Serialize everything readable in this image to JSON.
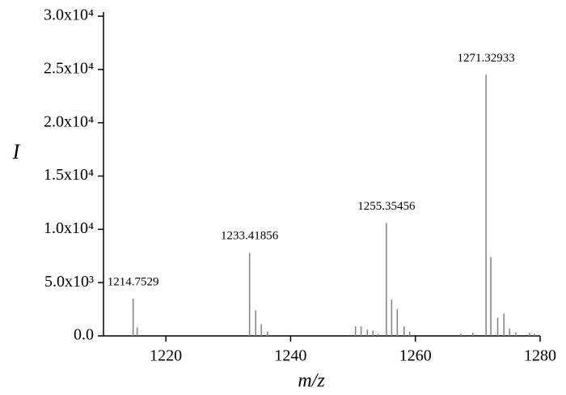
{
  "chart_data": {
    "type": "stick",
    "x_axis_label": "m/z",
    "y_axis_label": "I",
    "color": "#808080",
    "xlim": [
      1210,
      1280
    ],
    "xticks": [
      1220,
      1240,
      1260,
      1280
    ],
    "ylim": [
      0,
      30000
    ],
    "yticks": [
      {
        "value": 0,
        "label": "0.0"
      },
      {
        "value": 5000,
        "label": "5.0x10³"
      },
      {
        "value": 10000,
        "label": "1.0x10⁴"
      },
      {
        "value": 15000,
        "label": "1.5x10⁴"
      },
      {
        "value": 20000,
        "label": "2.0x10⁴"
      },
      {
        "value": 25000,
        "label": "2.5x10⁴"
      },
      {
        "value": 30000,
        "label": "3.0x10⁴"
      }
    ],
    "x": [
      1214.7529,
      1215.4,
      1233.41856,
      1234.4,
      1235.3,
      1236.3,
      1250.4,
      1251.3,
      1252.3,
      1253.2,
      1254.0,
      1255.35456,
      1256.2,
      1257.1,
      1258.2,
      1259.1,
      1267.3,
      1269.2,
      1271.32933,
      1272.1,
      1273.2,
      1274.2,
      1275.1,
      1276.1,
      1278.3,
      1279.1
    ],
    "values": [
      3500,
      800,
      7800,
      2400,
      1100,
      400,
      900,
      900,
      600,
      500,
      200,
      10600,
      3400,
      2500,
      900,
      400,
      200,
      300,
      24500,
      7400,
      1700,
      2100,
      700,
      300,
      300,
      200
    ],
    "x_labels": [
      "1214.7529",
      null,
      "1233.41856",
      null,
      null,
      null,
      null,
      null,
      null,
      null,
      null,
      "1255.35456",
      null,
      null,
      null,
      null,
      null,
      null,
      "1271.32933",
      null,
      null,
      null,
      null,
      null,
      null,
      null
    ]
  }
}
